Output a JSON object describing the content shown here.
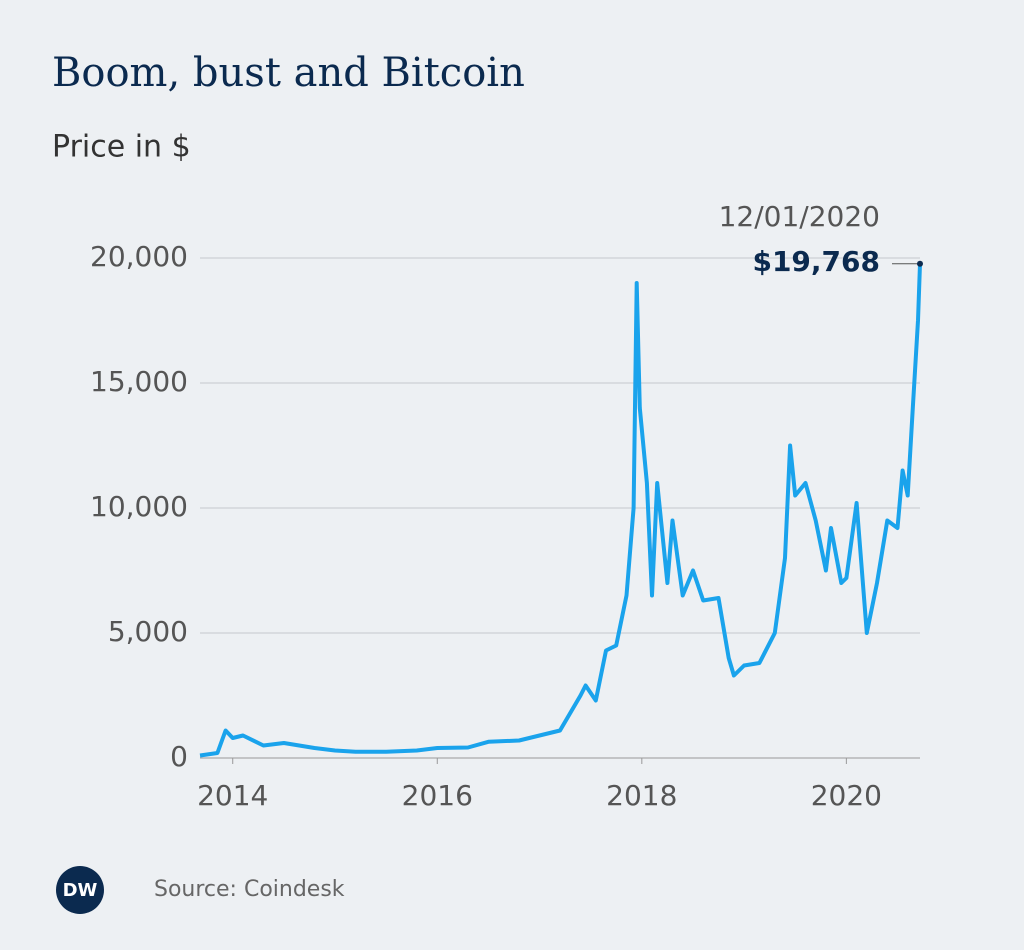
{
  "chart_data": {
    "type": "line",
    "title": "Boom, bust and Bitcoin",
    "subtitle": "Price in $",
    "x": [
      2013.68,
      2013.85,
      2013.93,
      2014.0,
      2014.1,
      2014.3,
      2014.5,
      2014.8,
      2015.0,
      2015.2,
      2015.5,
      2015.8,
      2016.0,
      2016.3,
      2016.5,
      2016.8,
      2017.0,
      2017.2,
      2017.4,
      2017.45,
      2017.55,
      2017.65,
      2017.75,
      2017.85,
      2017.92,
      2017.95,
      2017.98,
      2018.05,
      2018.1,
      2018.15,
      2018.25,
      2018.3,
      2018.4,
      2018.5,
      2018.6,
      2018.75,
      2018.85,
      2018.9,
      2019.0,
      2019.15,
      2019.3,
      2019.4,
      2019.45,
      2019.5,
      2019.6,
      2019.7,
      2019.8,
      2019.85,
      2019.95,
      2020.0,
      2020.1,
      2020.2,
      2020.3,
      2020.4,
      2020.5,
      2020.55,
      2020.6,
      2020.65,
      2020.7,
      2020.72
    ],
    "values": [
      100,
      200,
      1100,
      800,
      900,
      500,
      600,
      400,
      300,
      250,
      250,
      300,
      400,
      420,
      650,
      700,
      900,
      1100,
      2500,
      2900,
      2300,
      4300,
      4500,
      6500,
      10000,
      19000,
      14000,
      11000,
      6500,
      11000,
      7000,
      9500,
      6500,
      7500,
      6300,
      6400,
      4000,
      3300,
      3700,
      3800,
      5000,
      8000,
      12500,
      10500,
      11000,
      9500,
      7500,
      9200,
      7000,
      7200,
      10200,
      5000,
      7000,
      9500,
      9200,
      11500,
      10500,
      14000,
      17500,
      19768
    ],
    "color": "#1aa3ec",
    "xlim": [
      2013.68,
      2020.72
    ],
    "xticks": [
      2014,
      2016,
      2018,
      2020
    ],
    "ylim": [
      0,
      20000
    ],
    "yticks": [
      0,
      {
        "value": 5000,
        "label": "5,000"
      },
      {
        "value": 10000,
        "label": "10,000"
      },
      {
        "value": 15000,
        "label": "15,000"
      },
      {
        "value": 20000,
        "label": "20,000"
      }
    ],
    "grid": true,
    "annotation": {
      "date": "12/01/2020",
      "value": 19768,
      "label": "$19,768"
    },
    "logo": "DW",
    "source": "Source: Coindesk"
  }
}
